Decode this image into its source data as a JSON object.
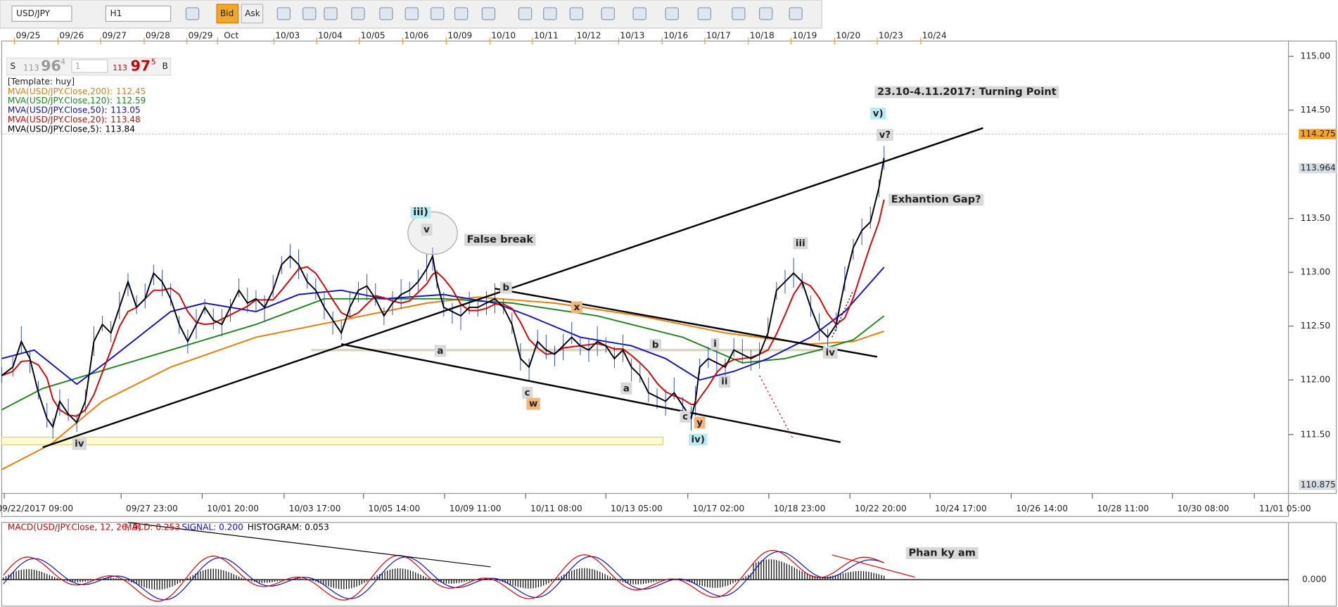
{
  "toolbar": {
    "symbol": "USD/JPY",
    "timeframe": "H1",
    "bid": "Bid",
    "ask": "Ask"
  },
  "quote": {
    "sell_side": "S",
    "sell_small": "113",
    "sell_big": "96",
    "sell_sup": "4",
    "lot": "1",
    "buy_small": "113",
    "buy_big": "97",
    "buy_sup": "5",
    "buy_side": "B"
  },
  "top_dates": [
    "09/25",
    "09/26",
    "09/27",
    "09/28",
    "09/29",
    "Oct",
    "10/03",
    "10/04",
    "10/05",
    "10/06",
    "10/09",
    "10/10",
    "10/11",
    "10/12",
    "10/13",
    "10/16",
    "10/17",
    "10/18",
    "10/19",
    "10/20",
    "10/23",
    "10/24"
  ],
  "price_labels": [
    "115.00",
    "114.50",
    "113.50",
    "113.00",
    "112.50",
    "112.00",
    "111.50"
  ],
  "price_markers": {
    "high": "114.275",
    "last": "113.964",
    "low": "110.875"
  },
  "legend": {
    "template": "[Template: huy]",
    "indicators": [
      {
        "name": "MVA(USD/JPY.Close,200):",
        "value": "112.45",
        "color": "#f07b00"
      },
      {
        "name": "MVA(USD/JPY.Close,120):",
        "value": "112.59",
        "color": "#1a8a1a"
      },
      {
        "name": "MVA(USD/JPY.Close,50):",
        "value": "113.05",
        "color": "#1010d0"
      },
      {
        "name": "MVA(USD/JPY.Close,20):",
        "value": "113.48",
        "color": "#e00000"
      },
      {
        "name": "MVA(USD/JPY.Close,5):",
        "value": "113.84",
        "color": "#000000"
      }
    ]
  },
  "annotations": [
    "23.10-4.11.2017: Turning Point",
    "v)",
    "v?",
    "Exhantion Gap?",
    "iii)",
    "v",
    "False break",
    "iii",
    "b",
    "x",
    "b",
    "i",
    "a",
    "iv",
    "ii",
    "a",
    "c",
    "w",
    "c",
    "y",
    "iv)",
    "iv"
  ],
  "time_axis": [
    "09/22/2017 09:00",
    "09/27 23:00",
    "10/01 20:00",
    "10/03 17:00",
    "10/05 14:00",
    "10/09 11:00",
    "10/11 08:00",
    "10/13 05:00",
    "10/17 02:00",
    "10/18 23:00",
    "10/22 20:00",
    "10/24 17:00",
    "10/26 14:00",
    "10/28 11:00",
    "10/30 08:00",
    "11/01 05:00"
  ],
  "macd": {
    "title": "MACD(USD/JPY.Close, 12, 26, 9)",
    "macd": "MACD: 0.253",
    "signal": "SIGNAL: 0.200",
    "histogram": "HISTOGRAM: 0.053",
    "zero": "0.000",
    "note": "Phan ky am"
  }
}
